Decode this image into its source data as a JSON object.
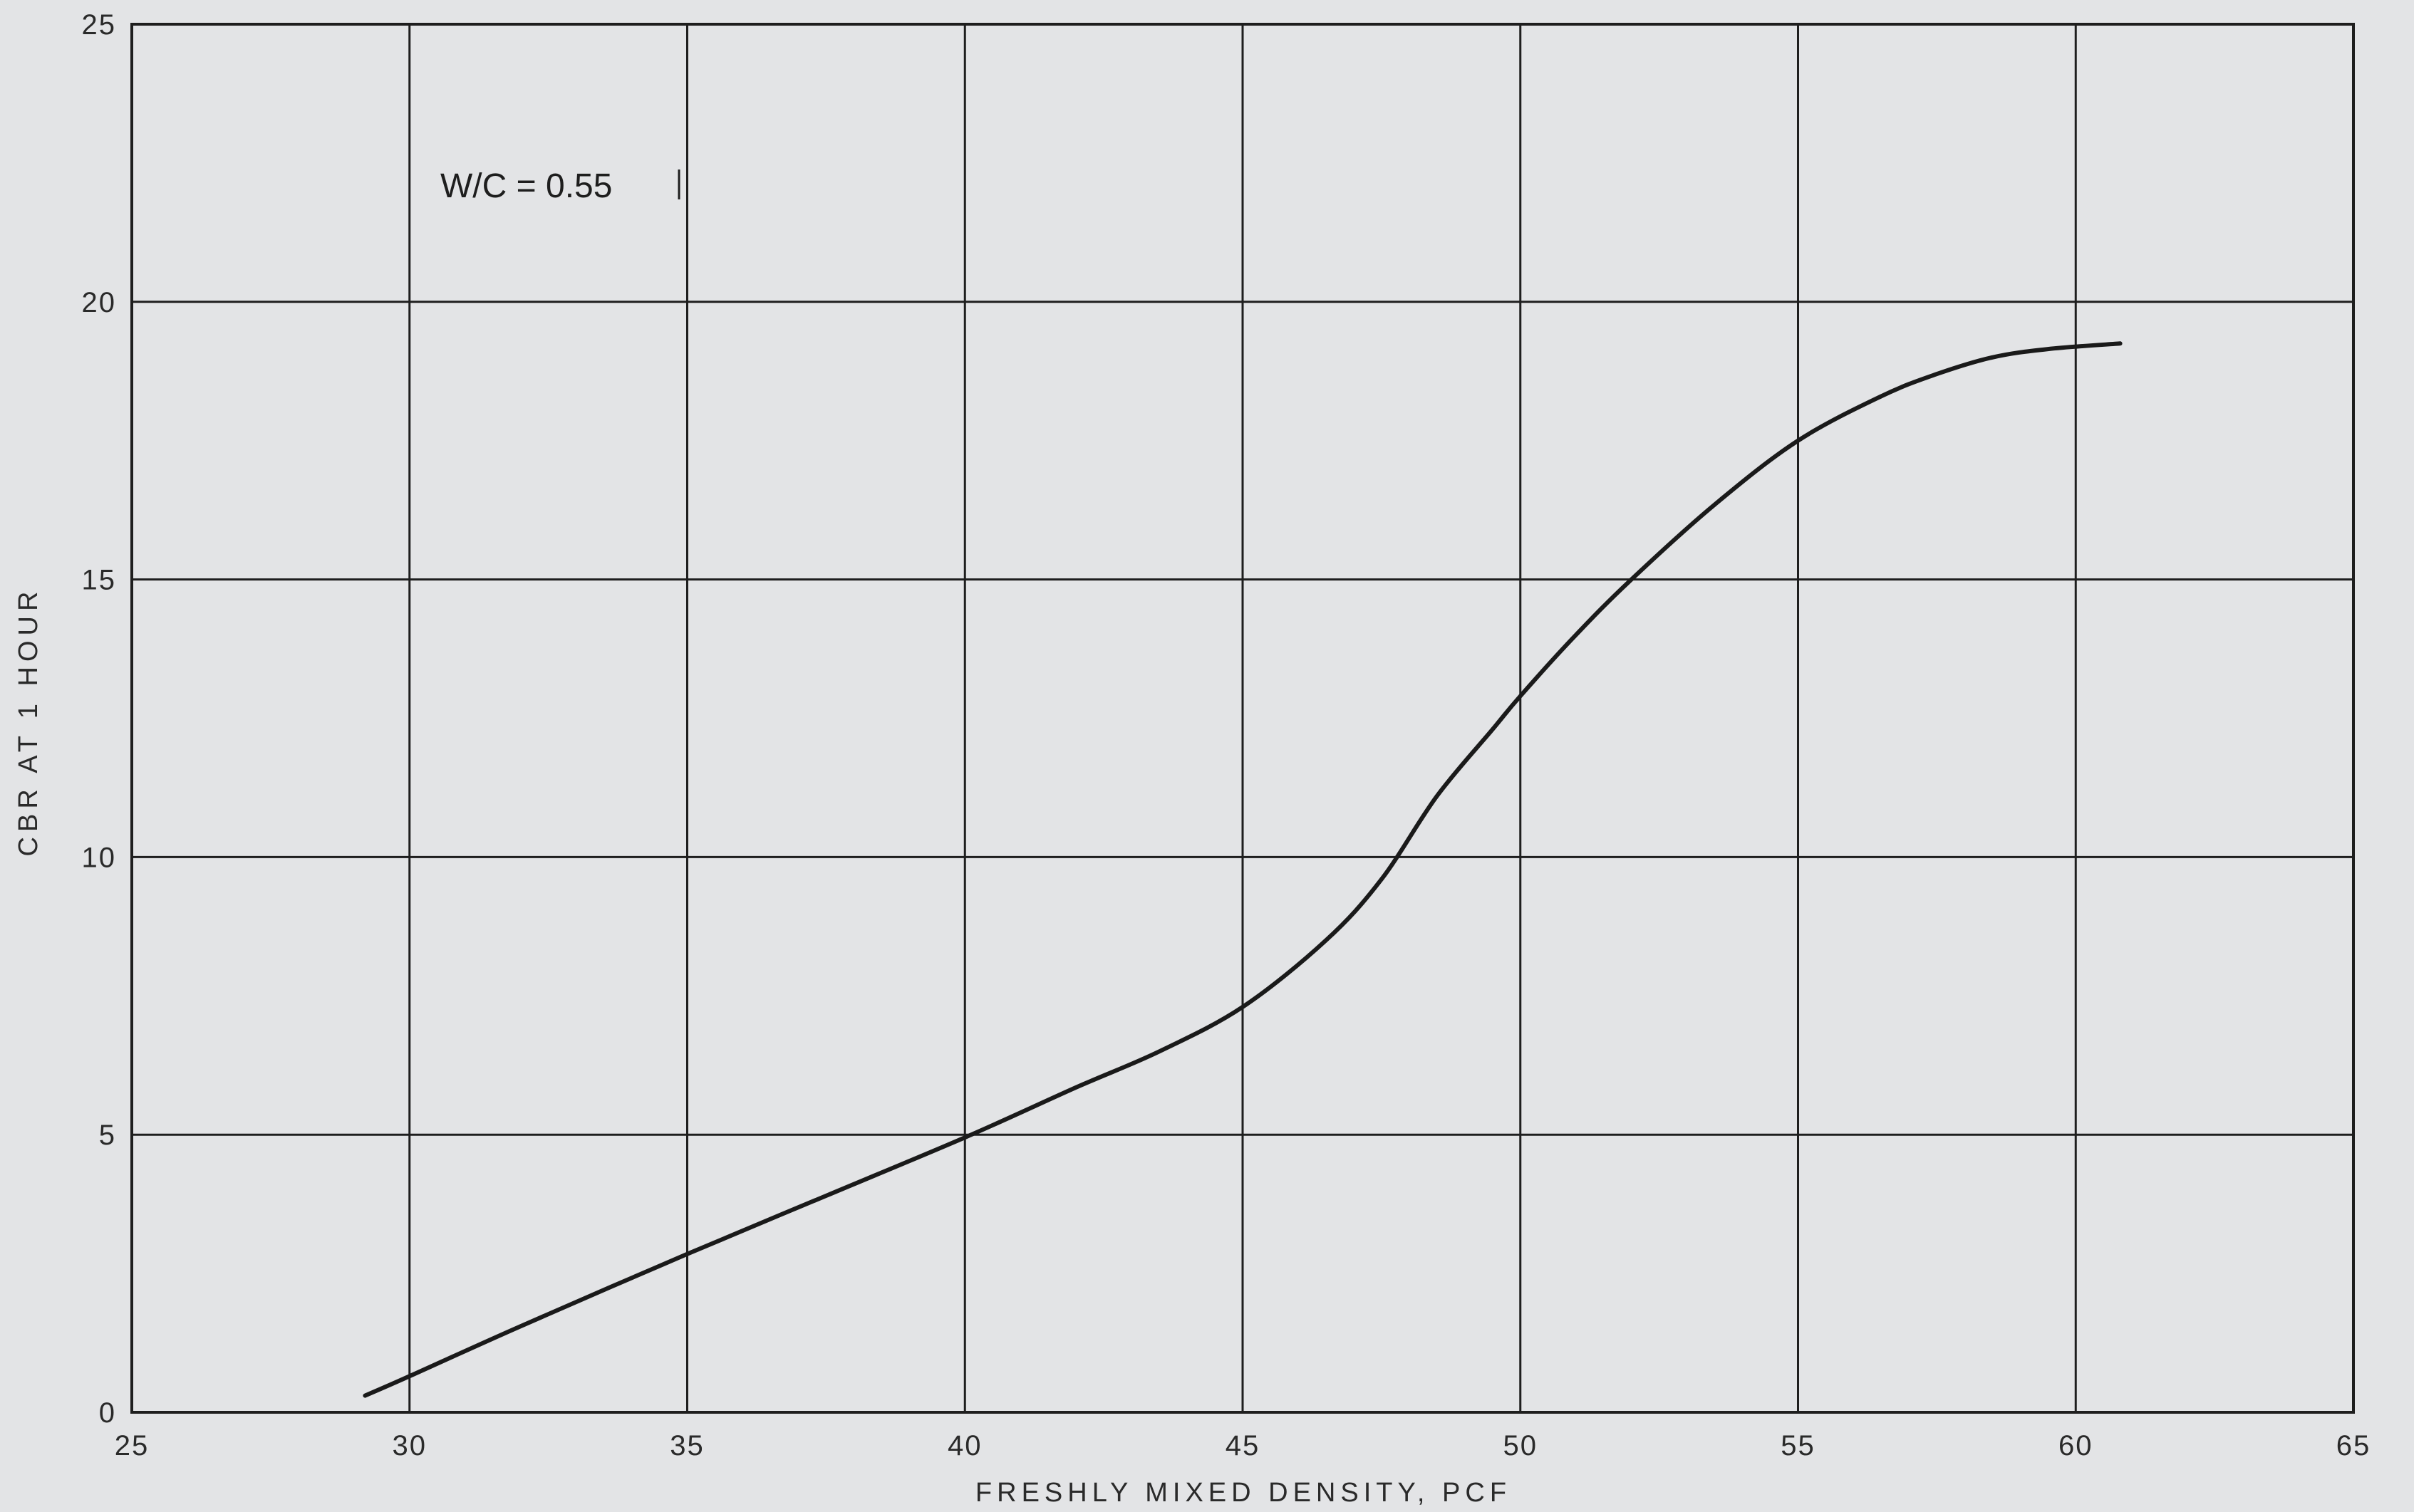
{
  "chart_data": {
    "type": "line",
    "title": "",
    "xlabel": "FRESHLY MIXED DENSITY, PCF",
    "ylabel": "CBR AT 1 HOUR",
    "xlim": [
      25,
      65
    ],
    "ylim": [
      0,
      25
    ],
    "x_ticks": [
      25,
      30,
      35,
      40,
      45,
      50,
      55,
      60,
      65
    ],
    "y_ticks": [
      0,
      5,
      10,
      15,
      20,
      25
    ],
    "grid": true,
    "annotation": "W/C = 0.55",
    "series": [
      {
        "x": [
          29.2,
          30.0,
          32.0,
          35.0,
          37.5,
          40.0,
          42.0,
          43.5,
          45.0,
          46.5,
          47.5,
          48.5,
          49.5,
          50.0,
          51.0,
          52.0,
          53.5,
          55.0,
          56.5,
          57.5,
          58.5,
          59.5,
          60.8
        ],
        "values": [
          0.3,
          0.65,
          1.55,
          2.85,
          3.9,
          4.95,
          5.85,
          6.5,
          7.3,
          8.5,
          9.6,
          11.1,
          12.3,
          12.9,
          14.0,
          15.0,
          16.35,
          17.5,
          18.3,
          18.7,
          19.0,
          19.15,
          19.25
        ]
      }
    ]
  }
}
